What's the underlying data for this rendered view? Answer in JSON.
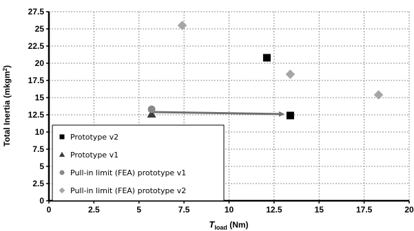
{
  "chart_data": {
    "type": "scatter",
    "title": "",
    "xlabel_main": "T",
    "xlabel_sub": "load",
    "xlabel_unit": " (Nm)",
    "ylabel_main": "Total Inertia (mkgm",
    "ylabel_sup": "2",
    "ylabel_end": ")",
    "xlim": [
      0,
      20
    ],
    "ylim": [
      0,
      27.5
    ],
    "x_ticks": [
      0,
      2.5,
      5,
      7.5,
      10,
      12.5,
      15,
      17.5,
      20
    ],
    "x_tick_labels": [
      "0",
      "2.5",
      "5",
      "7.5",
      "10",
      "12.5",
      "15",
      "17.5",
      "20"
    ],
    "y_ticks": [
      0,
      2.5,
      5,
      7.5,
      10,
      12.5,
      15,
      17.5,
      20,
      22.5,
      25,
      27.5
    ],
    "y_tick_labels": [
      "0",
      "2.5",
      "5",
      "7.5",
      "10",
      "12.5",
      "15",
      "17.5",
      "20",
      "22.5",
      "25",
      "27.5"
    ],
    "grid": true,
    "legend_position": "bottom-left",
    "series": [
      {
        "name": "Prototype v2",
        "marker": "square",
        "color": "#000000",
        "points": [
          {
            "x": 12.1,
            "y": 20.8
          },
          {
            "x": 13.4,
            "y": 12.4
          }
        ]
      },
      {
        "name": "Prototype v1",
        "marker": "triangle",
        "color": "#3c3c3c",
        "points": [
          {
            "x": 5.7,
            "y": 12.6
          }
        ]
      },
      {
        "name": "Pull-in limit (FEA) prototype v1",
        "marker": "circle",
        "color": "#888888",
        "points": [
          {
            "x": 5.7,
            "y": 13.3
          }
        ]
      },
      {
        "name": "Pull-in limit (FEA) prototype v2",
        "marker": "diamond",
        "color": "#a6a6a6",
        "points": [
          {
            "x": 7.4,
            "y": 25.5
          },
          {
            "x": 13.4,
            "y": 18.4
          },
          {
            "x": 18.3,
            "y": 15.4
          }
        ]
      }
    ],
    "arrows": [
      {
        "from": {
          "x": 5.8,
          "y": 12.9
        },
        "to": {
          "x": 13.0,
          "y": 12.6
        },
        "color": "#707070"
      }
    ]
  }
}
